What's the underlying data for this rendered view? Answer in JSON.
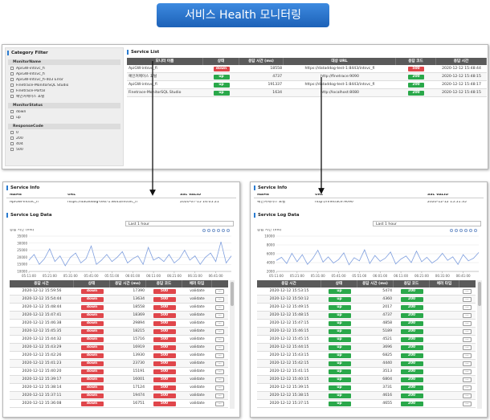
{
  "header": {
    "title": "서비스 Health 모니터링"
  },
  "filter": {
    "title": "Category Filter",
    "groups": [
      {
        "name": "MonitorName",
        "options": [
          "ApiGW-intsvc_fi",
          "ApiGW-Intsvc_fi",
          "ApiGW-Intsvc_fi-403 Error",
          "Finetrace-MonitorSQL Studio",
          "Finetrace-Portal",
          "예인커메이스 포털"
        ]
      },
      {
        "name": "MonitorStatus",
        "options": [
          "down",
          "up"
        ]
      },
      {
        "name": "ResponseCode",
        "options": [
          "0",
          "200",
          "404",
          "500"
        ]
      }
    ]
  },
  "service_list": {
    "title": "Service List",
    "columns": [
      "모니터 이름",
      "상태",
      "응답 시간 (ms)",
      "대상 URL",
      "응답 코드",
      "응답 시간"
    ],
    "rows": [
      [
        "ApiGW-intsvc_fi",
        "down",
        18558,
        "https://dataddog-test-1:8443/intsvc_fi",
        "500",
        "2020-12-12 15:48:44"
      ],
      [
        "예인커메이스 포털",
        "up",
        4737,
        "http://finetrace:9090",
        "200",
        "2020-12-12 15:48:15"
      ],
      [
        "ApiGW-intsvc_fi",
        "up",
        191337,
        "https://dataddog-test-1:8443/intsvc_fi",
        "200",
        "2020-12-12 15:48:17"
      ],
      [
        "Finetrace-MonitorSQL Studio",
        "up",
        1634,
        "http://localhost:8080",
        "200",
        "2020-12-12 15:48:15"
      ]
    ]
  },
  "panels": [
    {
      "info_title": "Service Info",
      "info_columns": [
        "NAME",
        "URL",
        "SSL VALID"
      ],
      "info_values": [
        "ApiGW-Intsvc_fi",
        "https://dataddog-test-1:8443/intsvc_fi",
        "2020-07-15 16:05:21"
      ],
      "log_title": "Service Log Data",
      "range": "Last 1 hour",
      "chart": {
        "type": "line",
        "title": "응답 시간 (ms)",
        "color": "#7e9ede",
        "categories": [
          "05:11:00",
          null,
          null,
          null,
          "05:21:00",
          null,
          null,
          null,
          "05:31:00",
          null,
          null,
          null,
          "05:41:00",
          null,
          null,
          null,
          "05:51:00",
          null,
          null,
          null,
          "06:01:00",
          null,
          null,
          null,
          "06:11:00",
          null,
          null,
          null,
          "06:21:00",
          null,
          null,
          null,
          "06:31:00",
          null,
          null,
          null,
          "06:41:00",
          null,
          null,
          null
        ],
        "values": [
          18000,
          22000,
          15000,
          19000,
          26000,
          17000,
          21000,
          14000,
          20000,
          23000,
          16000,
          19000,
          28000,
          15000,
          18000,
          22000,
          17000,
          20000,
          24000,
          16000,
          19000,
          21000,
          15000,
          27000,
          18000,
          20000,
          17000,
          22000,
          16000,
          19000,
          25000,
          18000,
          21000,
          15000,
          20000,
          23000,
          17000,
          31000,
          16000,
          21000
        ],
        "ylim": [
          10000,
          35000
        ],
        "yticks": [
          10000,
          15000,
          20000,
          25000,
          30000,
          35000
        ]
      },
      "log_columns": [
        "응답 시간",
        "상태",
        "응답 시간 (ms)",
        "응답 코드",
        "에러 타입"
      ],
      "log_rows": [
        [
          "2020-12-12 15:59:56",
          "down",
          17390,
          "500",
          "validate"
        ],
        [
          "2020-12-12 15:54:44",
          "down",
          13634,
          "500",
          "validate"
        ],
        [
          "2020-12-12 15:48:44",
          "down",
          18558,
          "500",
          "validate"
        ],
        [
          "2020-12-12 15:47:41",
          "down",
          18369,
          "500",
          "validate"
        ],
        [
          "2020-12-12 15:46:38",
          "down",
          29894,
          "500",
          "validate"
        ],
        [
          "2020-12-12 15:45:35",
          "down",
          18215,
          "500",
          "validate"
        ],
        [
          "2020-12-12 15:44:32",
          "down",
          15716,
          "500",
          "validate"
        ],
        [
          "2020-12-12 15:43:29",
          "down",
          16919,
          "500",
          "validate"
        ],
        [
          "2020-12-12 15:42:26",
          "down",
          13930,
          "500",
          "validate"
        ],
        [
          "2020-12-12 15:41:23",
          "down",
          23730,
          "500",
          "validate"
        ],
        [
          "2020-12-12 15:40:20",
          "down",
          15191,
          "500",
          "validate"
        ],
        [
          "2020-12-12 15:39:17",
          "down",
          16001,
          "500",
          "validate"
        ],
        [
          "2020-12-12 15:38:14",
          "down",
          17124,
          "500",
          "validate"
        ],
        [
          "2020-12-12 15:37:11",
          "down",
          19474,
          "500",
          "validate"
        ],
        [
          "2020-12-12 15:36:08",
          "down",
          16751,
          "500",
          "validate"
        ]
      ],
      "row_button": "···"
    },
    {
      "info_title": "Service Info",
      "info_columns": [
        "NAME",
        "URL",
        "SSL VALID"
      ],
      "info_values": [
        "예인커메이스 포털",
        "http://finetrace:9090",
        "2020-12-12 15:51:35"
      ],
      "log_title": "Service Log Data",
      "range": "Last 1 hour",
      "chart": {
        "type": "line",
        "title": "응답 시간 (ms)",
        "color": "#7e9ede",
        "categories": [
          "05:11:00",
          null,
          null,
          null,
          "05:21:00",
          null,
          null,
          null,
          "05:31:00",
          null,
          null,
          null,
          "05:41:00",
          null,
          null,
          null,
          "05:51:00",
          null,
          null,
          null,
          "06:01:00",
          null,
          null,
          null,
          "06:11:00",
          null,
          null,
          null,
          "06:21:00",
          null,
          null,
          null,
          "06:31:00",
          null,
          null,
          null,
          "06:41:00",
          null,
          null,
          null
        ],
        "values": [
          4500,
          5200,
          3800,
          6100,
          4200,
          5800,
          3600,
          4900,
          6800,
          4100,
          5300,
          3900,
          4700,
          6200,
          3500,
          5100,
          4400,
          6900,
          3800,
          5600,
          4300,
          5000,
          6400,
          3700,
          4800,
          5500,
          4000,
          6600,
          4200,
          5200,
          3900,
          4700,
          6100,
          4500,
          5300,
          3600,
          5800,
          4400,
          5000,
          6300
        ],
        "ylim": [
          2000,
          10000
        ],
        "yticks": [
          2000,
          4000,
          6000,
          8000,
          10000
        ]
      },
      "log_columns": [
        "응답 시간",
        "상태",
        "응답 시간 (ms)",
        "응답 코드",
        "에러 타입"
      ],
      "log_rows": [
        [
          "2020-12-12 15:53:15",
          "up",
          5474,
          "200"
        ],
        [
          "2020-12-12 15:50:12",
          "up",
          4360,
          "200"
        ],
        [
          "2020-12-12 15:49:15",
          "up",
          2017,
          "200"
        ],
        [
          "2020-12-12 15:48:15",
          "up",
          4737,
          "200"
        ],
        [
          "2020-12-12 15:47:15",
          "up",
          4858,
          "200"
        ],
        [
          "2020-12-12 15:46:15",
          "up",
          5189,
          "200"
        ],
        [
          "2020-12-12 15:45:15",
          "up",
          4521,
          "200"
        ],
        [
          "2020-12-12 15:44:15",
          "up",
          3696,
          "200"
        ],
        [
          "2020-12-12 15:43:15",
          "up",
          6825,
          "200"
        ],
        [
          "2020-12-12 15:42:15",
          "up",
          4440,
          "200"
        ],
        [
          "2020-12-12 15:41:15",
          "up",
          3513,
          "200"
        ],
        [
          "2020-12-12 15:40:15",
          "up",
          6804,
          "200"
        ],
        [
          "2020-12-12 15:39:15",
          "up",
          3731,
          "200"
        ],
        [
          "2020-12-12 15:38:15",
          "up",
          4616,
          "200"
        ],
        [
          "2020-12-12 15:37:15",
          "up",
          4655,
          "200"
        ]
      ],
      "row_button": "···"
    }
  ]
}
